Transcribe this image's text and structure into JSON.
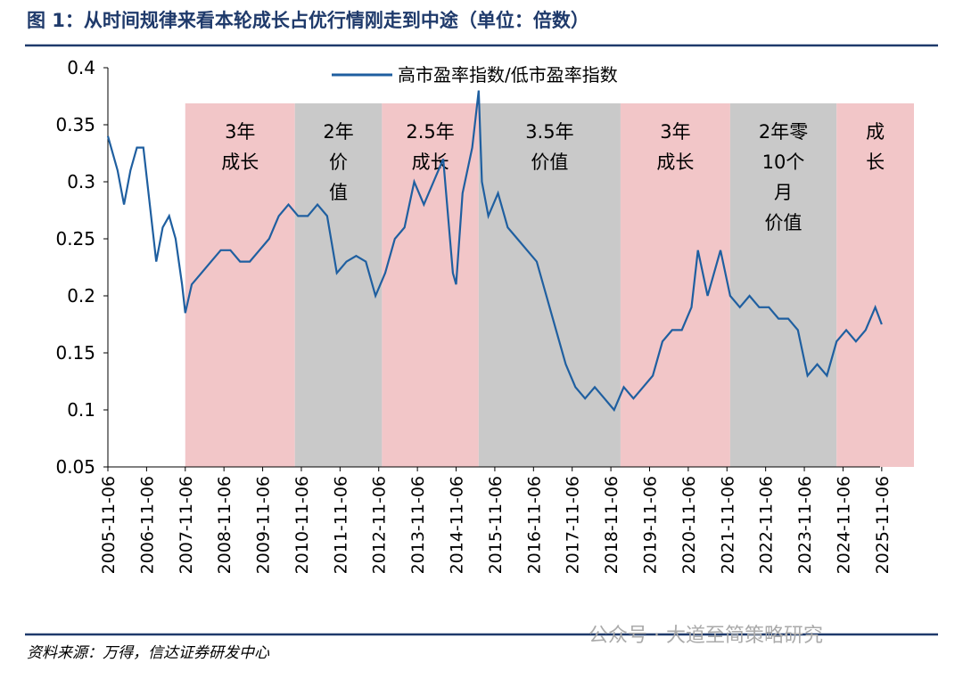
{
  "chart_data": {
    "type": "line",
    "title": "图 1：从时间规律来看本轮成长占优行情刚走到中途（单位：倍数）",
    "source": "资料来源：万得，信达证券研发中心",
    "watermark": "公众号 · 大道至简策略研究",
    "x": [
      "2005-11",
      "2006-02",
      "2006-04",
      "2006-06",
      "2006-08",
      "2006-10",
      "2006-12",
      "2007-02",
      "2007-04",
      "2007-06",
      "2007-08",
      "2007-10",
      "2007-11",
      "2008-01",
      "2008-04",
      "2008-07",
      "2008-10",
      "2009-01",
      "2009-04",
      "2009-07",
      "2009-10",
      "2010-01",
      "2010-04",
      "2010-07",
      "2010-10",
      "2011-01",
      "2011-04",
      "2011-07",
      "2011-10",
      "2012-01",
      "2012-04",
      "2012-07",
      "2012-10",
      "2013-01",
      "2013-04",
      "2013-07",
      "2013-10",
      "2014-01",
      "2014-04",
      "2014-07",
      "2014-10",
      "2014-11",
      "2015-01",
      "2015-04",
      "2015-06",
      "2015-07",
      "2015-09",
      "2015-12",
      "2016-03",
      "2016-06",
      "2016-09",
      "2016-12",
      "2017-03",
      "2017-06",
      "2017-09",
      "2017-12",
      "2018-03",
      "2018-06",
      "2018-09",
      "2018-12",
      "2019-03",
      "2019-06",
      "2019-09",
      "2019-12",
      "2020-03",
      "2020-06",
      "2020-09",
      "2020-12",
      "2021-02",
      "2021-05",
      "2021-09",
      "2021-12",
      "2022-03",
      "2022-06",
      "2022-09",
      "2022-12",
      "2023-03",
      "2023-06",
      "2023-09",
      "2023-12",
      "2024-03",
      "2024-06",
      "2024-09",
      "2024-12",
      "2025-03",
      "2025-06",
      "2025-09",
      "2025-11"
    ],
    "series": [
      {
        "name": "高市盈率指数/低市盈率指数",
        "color": "#1f5fa0",
        "values": [
          0.34,
          0.31,
          0.28,
          0.31,
          0.33,
          0.33,
          0.28,
          0.23,
          0.26,
          0.27,
          0.25,
          0.21,
          0.185,
          0.21,
          0.22,
          0.23,
          0.24,
          0.24,
          0.23,
          0.23,
          0.24,
          0.25,
          0.27,
          0.28,
          0.27,
          0.27,
          0.28,
          0.27,
          0.22,
          0.23,
          0.235,
          0.23,
          0.2,
          0.22,
          0.25,
          0.26,
          0.3,
          0.28,
          0.3,
          0.32,
          0.22,
          0.21,
          0.29,
          0.33,
          0.38,
          0.3,
          0.27,
          0.29,
          0.26,
          0.25,
          0.24,
          0.23,
          0.2,
          0.17,
          0.14,
          0.12,
          0.11,
          0.12,
          0.11,
          0.1,
          0.12,
          0.11,
          0.12,
          0.13,
          0.16,
          0.17,
          0.17,
          0.19,
          0.24,
          0.2,
          0.24,
          0.2,
          0.19,
          0.2,
          0.19,
          0.19,
          0.18,
          0.18,
          0.17,
          0.13,
          0.14,
          0.13,
          0.16,
          0.17,
          0.16,
          0.17,
          0.19,
          0.175
        ]
      }
    ],
    "regions": [
      {
        "start": "2007-11",
        "end": "2010-09",
        "color": "#f2c6c8",
        "label": [
          "3年",
          "成长"
        ]
      },
      {
        "start": "2010-09",
        "end": "2012-12",
        "color": "#c9c9c9",
        "label": [
          "2年",
          "价",
          "值"
        ]
      },
      {
        "start": "2012-12",
        "end": "2015-06",
        "color": "#f2c6c8",
        "label": [
          "2.5年",
          "成长"
        ]
      },
      {
        "start": "2015-06",
        "end": "2019-02",
        "color": "#c9c9c9",
        "label": [
          "3.5年",
          "价值"
        ]
      },
      {
        "start": "2019-02",
        "end": "2021-12",
        "color": "#f2c6c8",
        "label": [
          "3年",
          "成长"
        ]
      },
      {
        "start": "2021-12",
        "end": "2024-09",
        "color": "#c9c9c9",
        "label": [
          "2年零",
          "10个",
          "月",
          "价值"
        ]
      },
      {
        "start": "2024-09",
        "end": "2026-09",
        "color": "#f2c6c8",
        "label": [
          "成",
          "长"
        ]
      }
    ],
    "xlim": [
      "2005-11",
      "2026-09"
    ],
    "xticks": [
      {
        "value": "2005-11",
        "label": "2005-11-06"
      },
      {
        "value": "2006-11",
        "label": "2006-11-06"
      },
      {
        "value": "2007-11",
        "label": "2007-11-06"
      },
      {
        "value": "2008-11",
        "label": "2008-11-06"
      },
      {
        "value": "2009-11",
        "label": "2009-11-06"
      },
      {
        "value": "2010-11",
        "label": "2010-11-06"
      },
      {
        "value": "2011-11",
        "label": "2011-11-06"
      },
      {
        "value": "2012-11",
        "label": "2012-11-06"
      },
      {
        "value": "2013-11",
        "label": "2013-11-06"
      },
      {
        "value": "2014-11",
        "label": "2014-11-06"
      },
      {
        "value": "2015-11",
        "label": "2015-11-06"
      },
      {
        "value": "2016-11",
        "label": "2016-11-06"
      },
      {
        "value": "2017-11",
        "label": "2017-11-06"
      },
      {
        "value": "2018-11",
        "label": "2018-11-06"
      },
      {
        "value": "2019-11",
        "label": "2019-11-06"
      },
      {
        "value": "2020-11",
        "label": "2020-11-06"
      },
      {
        "value": "2021-11",
        "label": "2021-11-06"
      },
      {
        "value": "2022-11",
        "label": "2022-11-06"
      },
      {
        "value": "2023-11",
        "label": "2023-11-06"
      },
      {
        "value": "2024-11",
        "label": "2024-11-06"
      },
      {
        "value": "2025-11",
        "label": "2025-11-06"
      }
    ],
    "ylim": [
      0.05,
      0.4
    ],
    "yticks": [
      0.05,
      0.1,
      0.15,
      0.2,
      0.25,
      0.3,
      0.35,
      0.4
    ]
  }
}
